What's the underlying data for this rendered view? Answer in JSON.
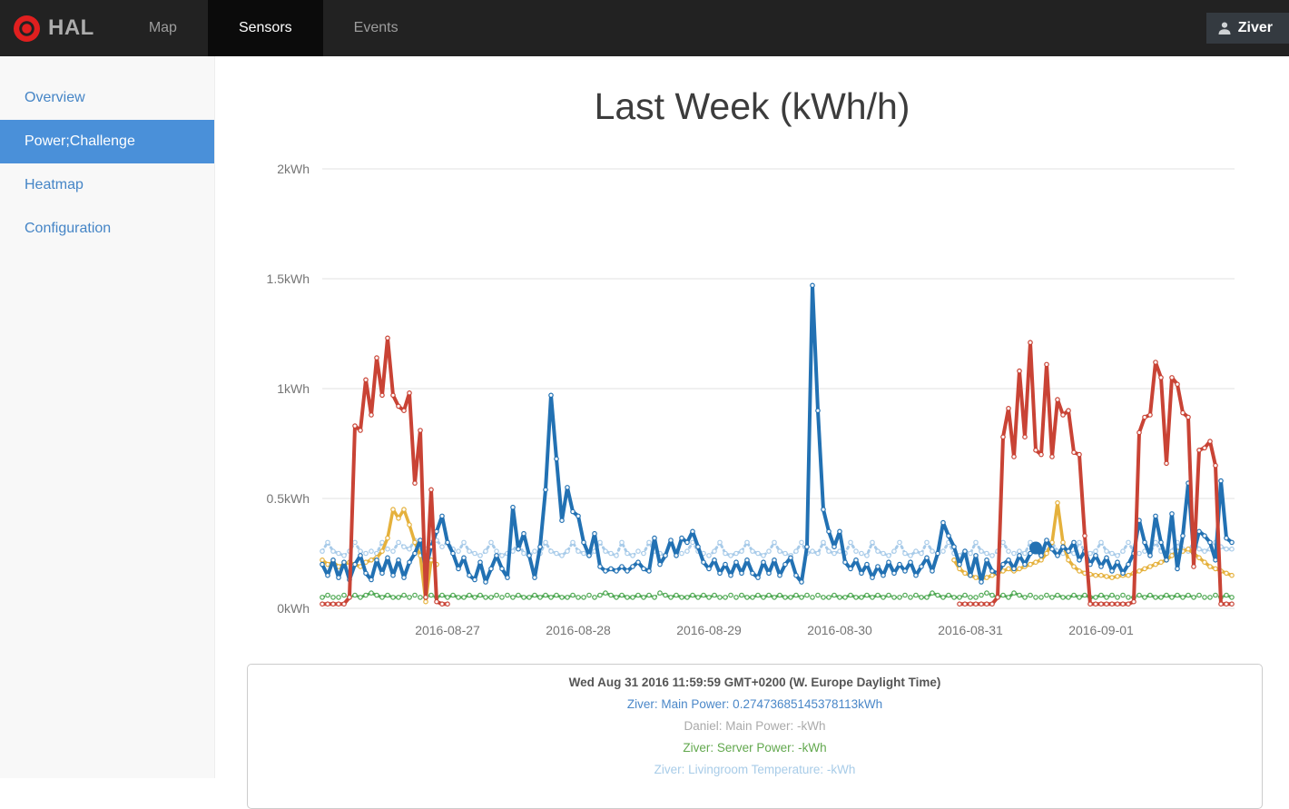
{
  "nav": {
    "brand": "HAL",
    "items": [
      {
        "label": "Map",
        "active": false
      },
      {
        "label": "Sensors",
        "active": true
      },
      {
        "label": "Events",
        "active": false
      }
    ],
    "user": {
      "name": "Ziver"
    }
  },
  "sidebar": {
    "items": [
      {
        "label": "Overview",
        "active": false
      },
      {
        "label": "Power;Challenge",
        "active": true
      },
      {
        "label": "Heatmap",
        "active": false
      },
      {
        "label": "Configuration",
        "active": false
      }
    ]
  },
  "main": {
    "title": "Last Week (kWh/h)"
  },
  "tooltip_panel": {
    "header": "Wed Aug 31 2016 11:59:59 GMT+0200 (W. Europe Daylight Time)",
    "lines": [
      {
        "text": "Ziver: Main Power: 0.27473685145378113kWh",
        "color": "#4a87c8"
      },
      {
        "text": "Daniel: Main Power: -kWh",
        "color": "#aaaaaa"
      },
      {
        "text": "Ziver: Server Power: -kWh",
        "color": "#62a84e"
      },
      {
        "text": "Ziver: Livingroom Temperature: -kWh",
        "color": "#a8cce8"
      }
    ]
  },
  "chart_data": {
    "type": "line",
    "title": "Last Week (kWh/h)",
    "ylabel": "kWh",
    "ylim": [
      0,
      2
    ],
    "grid": true,
    "legend_position": "none",
    "x_resolution_hours": 1,
    "yticks": [
      {
        "label": "0kWh",
        "value": 0
      },
      {
        "label": "0.5kWh",
        "value": 0.5
      },
      {
        "label": "1kWh",
        "value": 1
      },
      {
        "label": "1.5kWh",
        "value": 1.5
      },
      {
        "label": "2kWh",
        "value": 2
      }
    ],
    "xticks": [
      {
        "label": "2016-08-27",
        "hour": 24
      },
      {
        "label": "2016-08-28",
        "hour": 48
      },
      {
        "label": "2016-08-29",
        "hour": 72
      },
      {
        "label": "2016-08-30",
        "hour": 96
      },
      {
        "label": "2016-08-31",
        "hour": 120
      },
      {
        "label": "2016-09-01",
        "hour": 144
      }
    ],
    "selected_point": {
      "series": "blue",
      "index": 131,
      "value": 0.27473685145378113
    },
    "series": [
      {
        "id": "lightblue",
        "name": "Ziver: Livingroom Temperature",
        "color": "#a8cbe9",
        "width": 3,
        "dash": "2,4",
        "values": [
          0.26,
          0.3,
          0.26,
          0.25,
          0.24,
          0.26,
          0.3,
          0.26,
          0.25,
          0.26,
          0.25,
          0.3,
          0.27,
          0.26,
          0.3,
          0.28,
          0.27,
          0.31,
          0.28,
          0.27,
          0.3,
          0.31,
          0.28,
          0.3,
          0.27,
          0.26,
          0.3,
          0.26,
          0.25,
          0.24,
          0.26,
          0.3,
          0.26,
          0.24,
          0.25,
          0.26,
          0.3,
          0.25,
          0.24,
          0.26,
          0.25,
          0.3,
          0.26,
          0.25,
          0.24,
          0.26,
          0.3,
          0.26,
          0.25,
          0.24,
          0.26,
          0.3,
          0.26,
          0.25,
          0.24,
          0.3,
          0.25,
          0.24,
          0.26,
          0.25,
          0.3,
          0.26,
          0.25,
          0.24,
          0.3,
          0.26,
          0.25,
          0.26,
          0.3,
          0.26,
          0.25,
          0.24,
          0.26,
          0.3,
          0.25,
          0.24,
          0.25,
          0.26,
          0.3,
          0.26,
          0.25,
          0.24,
          0.26,
          0.3,
          0.26,
          0.25,
          0.24,
          0.26,
          0.3,
          0.25,
          0.26,
          0.25,
          0.3,
          0.26,
          0.25,
          0.26,
          0.25,
          0.3,
          0.26,
          0.25,
          0.24,
          0.3,
          0.26,
          0.25,
          0.24,
          0.26,
          0.3,
          0.25,
          0.24,
          0.26,
          0.25,
          0.3,
          0.26,
          0.25,
          0.26,
          0.3,
          0.25,
          0.24,
          0.26,
          0.25,
          0.3,
          0.26,
          0.25,
          0.24,
          0.26,
          0.3,
          0.26,
          0.25,
          0.26,
          0.25,
          0.3,
          0.26,
          0.25,
          0.26,
          0.3,
          0.26,
          0.25,
          0.26,
          0.25,
          0.3,
          0.26,
          0.25,
          0.26,
          0.3,
          0.26,
          0.25,
          0.24,
          0.26,
          0.3,
          0.26,
          0.25,
          0.26,
          0.25,
          0.3,
          0.26,
          0.25,
          0.26,
          0.3,
          0.27,
          0.26,
          0.3,
          0.27,
          0.26,
          0.27,
          0.3,
          0.28,
          0.27,
          0.27
        ]
      },
      {
        "id": "green",
        "name": "Ziver: Server Power",
        "color": "#4ea852",
        "width": 3,
        "dash": "2,4",
        "values": [
          0.05,
          0.06,
          0.05,
          0.05,
          0.06,
          0.05,
          0.06,
          0.05,
          0.06,
          0.07,
          0.06,
          0.05,
          0.06,
          0.05,
          0.05,
          0.06,
          0.05,
          0.06,
          0.05,
          0.05,
          0.06,
          0.05,
          0.06,
          0.05,
          0.06,
          0.05,
          0.05,
          0.06,
          0.05,
          0.06,
          0.05,
          0.05,
          0.06,
          0.05,
          0.06,
          0.05,
          0.06,
          0.05,
          0.05,
          0.06,
          0.05,
          0.06,
          0.05,
          0.06,
          0.05,
          0.05,
          0.06,
          0.05,
          0.05,
          0.06,
          0.05,
          0.06,
          0.07,
          0.06,
          0.05,
          0.06,
          0.05,
          0.05,
          0.06,
          0.05,
          0.06,
          0.05,
          0.07,
          0.06,
          0.05,
          0.06,
          0.05,
          0.05,
          0.06,
          0.05,
          0.06,
          0.05,
          0.06,
          0.05,
          0.05,
          0.06,
          0.05,
          0.06,
          0.05,
          0.05,
          0.06,
          0.05,
          0.06,
          0.05,
          0.06,
          0.05,
          0.05,
          0.06,
          0.05,
          0.06,
          0.05,
          0.06,
          0.05,
          0.05,
          0.06,
          0.05,
          0.05,
          0.06,
          0.05,
          0.05,
          0.06,
          0.05,
          0.06,
          0.05,
          0.06,
          0.05,
          0.05,
          0.06,
          0.05,
          0.06,
          0.05,
          0.05,
          0.07,
          0.06,
          0.05,
          0.06,
          0.05,
          0.05,
          0.06,
          0.05,
          0.05,
          0.06,
          0.07,
          0.06,
          0.05,
          0.06,
          0.05,
          0.07,
          0.06,
          0.05,
          0.06,
          0.05,
          0.05,
          0.06,
          0.05,
          0.06,
          0.05,
          0.05,
          0.06,
          0.05,
          0.06,
          0.05,
          0.05,
          0.06,
          0.05,
          0.06,
          0.05,
          0.06,
          0.05,
          0.05,
          0.06,
          0.05,
          0.06,
          0.05,
          0.05,
          0.06,
          0.05,
          0.06,
          0.05,
          0.06,
          0.05,
          0.06,
          0.05,
          0.05,
          0.06,
          0.05,
          0.06,
          0.05
        ]
      },
      {
        "id": "yellow",
        "name": "",
        "color": "#e5b13c",
        "width": 3.5,
        "dash": "",
        "values": [
          0.22,
          0.2,
          0.21,
          0.19,
          0.2,
          0.21,
          0.2,
          0.19,
          0.21,
          0.22,
          0.23,
          0.26,
          0.32,
          0.45,
          0.41,
          0.45,
          0.38,
          0.3,
          0.24,
          0.03,
          0.22,
          0.2,
          null,
          null,
          null,
          null,
          null,
          null,
          null,
          null,
          null,
          null,
          null,
          null,
          null,
          null,
          null,
          null,
          null,
          null,
          null,
          null,
          null,
          null,
          null,
          null,
          null,
          null,
          null,
          null,
          null,
          null,
          null,
          null,
          null,
          null,
          null,
          null,
          null,
          null,
          null,
          null,
          null,
          null,
          null,
          null,
          null,
          null,
          null,
          null,
          null,
          null,
          null,
          null,
          null,
          null,
          null,
          null,
          null,
          null,
          null,
          null,
          null,
          null,
          null,
          null,
          null,
          null,
          null,
          null,
          null,
          null,
          null,
          null,
          null,
          null,
          null,
          null,
          null,
          null,
          null,
          null,
          null,
          null,
          null,
          null,
          null,
          null,
          null,
          null,
          null,
          null,
          null,
          null,
          null,
          null,
          0.22,
          0.18,
          0.16,
          0.15,
          0.14,
          0.135,
          0.14,
          0.15,
          0.16,
          0.17,
          0.18,
          0.17,
          0.18,
          0.19,
          0.2,
          0.21,
          0.22,
          0.25,
          0.3,
          0.48,
          0.3,
          0.22,
          0.19,
          0.17,
          0.16,
          0.155,
          0.15,
          0.15,
          0.145,
          0.14,
          0.145,
          0.15,
          0.15,
          0.16,
          0.17,
          0.18,
          0.19,
          0.2,
          0.21,
          0.22,
          0.24,
          0.26,
          0.26,
          0.27,
          0.25,
          0.23,
          0.21,
          0.19,
          0.18,
          0.17,
          0.16,
          0.15
        ]
      },
      {
        "id": "blue",
        "name": "Ziver: Main Power",
        "color": "#2271b3",
        "width": 4,
        "dash": "",
        "values": [
          0.2,
          0.15,
          0.22,
          0.14,
          0.21,
          0.13,
          0.2,
          0.24,
          0.16,
          0.13,
          0.22,
          0.16,
          0.23,
          0.15,
          0.22,
          0.14,
          0.21,
          0.25,
          0.31,
          0.18,
          0.28,
          0.35,
          0.42,
          0.3,
          0.25,
          0.18,
          0.23,
          0.15,
          0.13,
          0.21,
          0.12,
          0.18,
          0.24,
          0.18,
          0.14,
          0.46,
          0.27,
          0.34,
          0.24,
          0.14,
          0.28,
          0.54,
          0.97,
          0.68,
          0.4,
          0.55,
          0.44,
          0.42,
          0.3,
          0.24,
          0.34,
          0.19,
          0.17,
          0.18,
          0.17,
          0.19,
          0.17,
          0.19,
          0.21,
          0.18,
          0.17,
          0.32,
          0.2,
          0.24,
          0.31,
          0.24,
          0.32,
          0.3,
          0.35,
          0.28,
          0.21,
          0.18,
          0.22,
          0.16,
          0.2,
          0.15,
          0.21,
          0.16,
          0.22,
          0.16,
          0.14,
          0.21,
          0.16,
          0.22,
          0.15,
          0.2,
          0.23,
          0.15,
          0.12,
          0.28,
          1.47,
          0.9,
          0.45,
          0.35,
          0.28,
          0.35,
          0.21,
          0.18,
          0.22,
          0.16,
          0.2,
          0.14,
          0.19,
          0.15,
          0.21,
          0.16,
          0.2,
          0.17,
          0.21,
          0.15,
          0.19,
          0.23,
          0.17,
          0.25,
          0.39,
          0.33,
          0.28,
          0.2,
          0.26,
          0.15,
          0.24,
          0.12,
          0.22,
          0.17,
          0.16,
          0.2,
          0.22,
          0.18,
          0.24,
          0.2,
          0.25,
          0.2747368514537811,
          0.24,
          0.31,
          0.27,
          0.24,
          0.28,
          0.26,
          0.3,
          0.22,
          0.26,
          0.2,
          0.24,
          0.19,
          0.23,
          0.17,
          0.21,
          0.16,
          0.2,
          0.25,
          0.4,
          0.3,
          0.24,
          0.42,
          0.3,
          0.22,
          0.43,
          0.18,
          0.33,
          0.57,
          0.25,
          0.35,
          0.33,
          0.3,
          0.22,
          0.58,
          0.32,
          0.3
        ]
      },
      {
        "id": "red",
        "name": "Daniel: Main Power",
        "color": "#c94335",
        "width": 4,
        "dash": "",
        "values": [
          0.02,
          0.02,
          0.02,
          0.02,
          0.02,
          0.05,
          0.83,
          0.81,
          1.04,
          0.88,
          1.14,
          0.97,
          1.23,
          0.97,
          0.92,
          0.9,
          0.98,
          0.57,
          0.81,
          0.05,
          0.54,
          0.03,
          0.02,
          0.02,
          null,
          null,
          null,
          null,
          null,
          null,
          null,
          null,
          null,
          null,
          null,
          null,
          null,
          null,
          null,
          null,
          null,
          null,
          null,
          null,
          null,
          null,
          null,
          null,
          null,
          null,
          null,
          null,
          null,
          null,
          null,
          null,
          null,
          null,
          null,
          null,
          null,
          null,
          null,
          null,
          null,
          null,
          null,
          null,
          null,
          null,
          null,
          null,
          null,
          null,
          null,
          null,
          null,
          null,
          null,
          null,
          null,
          null,
          null,
          null,
          null,
          null,
          null,
          null,
          null,
          null,
          null,
          null,
          null,
          null,
          null,
          null,
          null,
          null,
          null,
          null,
          null,
          null,
          null,
          null,
          null,
          null,
          null,
          null,
          null,
          null,
          null,
          null,
          null,
          null,
          null,
          null,
          null,
          0.02,
          0.02,
          0.02,
          0.02,
          0.02,
          0.02,
          0.02,
          0.05,
          0.78,
          0.91,
          0.69,
          1.08,
          0.78,
          1.21,
          0.72,
          0.7,
          1.11,
          0.69,
          0.95,
          0.88,
          0.9,
          0.71,
          0.7,
          0.33,
          0.02,
          0.02,
          0.02,
          0.02,
          0.02,
          0.02,
          0.02,
          0.02,
          0.03,
          0.8,
          0.87,
          0.88,
          1.12,
          1.05,
          0.66,
          1.05,
          1.02,
          0.89,
          0.87,
          0.19,
          0.72,
          0.73,
          0.76,
          0.65,
          0.02,
          0.02,
          0.02
        ]
      }
    ]
  }
}
